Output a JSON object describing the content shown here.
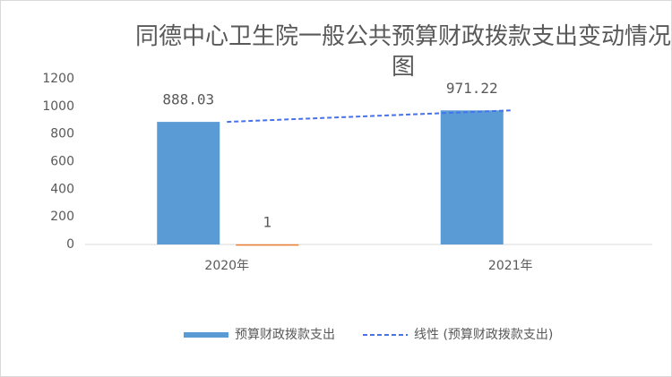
{
  "chart_data": {
    "type": "bar",
    "title": "同德中心卫生院一般公共预算财政拨款支出变动情况图",
    "categories": [
      "2020年",
      "2021年"
    ],
    "series": [
      {
        "name": "预算财政拨款支出",
        "color": "#5b9bd5",
        "values": [
          888.03,
          971.22
        ]
      },
      {
        "color": "#ed7d31",
        "values": [
          1,
          null
        ]
      }
    ],
    "trendline": {
      "name": "线性 (预算财政拨款支出)",
      "type": "linear",
      "color": "#4472f4",
      "series": 0
    },
    "ylim": [
      0,
      1200
    ],
    "yticks": [
      0,
      200,
      400,
      600,
      800,
      1000,
      1200
    ],
    "grid": false,
    "legend": "bottom"
  }
}
